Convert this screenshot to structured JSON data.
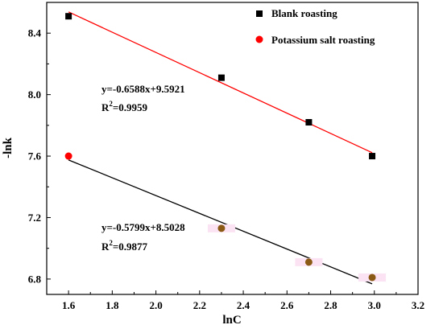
{
  "chart_data": {
    "type": "scatter",
    "xlabel": "lnC",
    "ylabel": "-lnk",
    "xlim": [
      1.5,
      3.2
    ],
    "ylim": [
      6.7,
      8.6
    ],
    "xticks": [
      "1.6",
      "1.8",
      "2.0",
      "2.2",
      "2.4",
      "2.6",
      "2.8",
      "3.0",
      "3.2"
    ],
    "yticks": [
      "6.8",
      "7.2",
      "7.6",
      "8.0",
      "8.4"
    ],
    "legend_position": "top-right",
    "series": [
      {
        "name": "Blank roasting",
        "marker": "square",
        "color": "#000000",
        "line_color": "#ff0000",
        "x": [
          1.6,
          2.3,
          2.7,
          2.99
        ],
        "y": [
          8.51,
          8.11,
          7.82,
          7.6
        ],
        "fit": {
          "slope": -0.6588,
          "intercept": 9.5921,
          "x_range": [
            1.6,
            2.99
          ]
        }
      },
      {
        "name": "Potassium salt roasting",
        "marker": "circle",
        "color": "#ff0000",
        "other_color": "#8b5a14",
        "line_color": "#000000",
        "x": [
          1.6,
          2.3,
          2.7,
          2.99
        ],
        "y": [
          7.6,
          7.13,
          6.91,
          6.81
        ],
        "fit": {
          "slope": -0.5799,
          "intercept": 8.5028,
          "x_range": [
            1.6,
            2.99
          ]
        }
      }
    ],
    "annotations": [
      {
        "equation": "y=-0.6588x+9.5921",
        "r2_value": "=0.9959"
      },
      {
        "equation": "y=-0.5799x+8.5028",
        "r2_value": "=0.9877"
      }
    ]
  }
}
